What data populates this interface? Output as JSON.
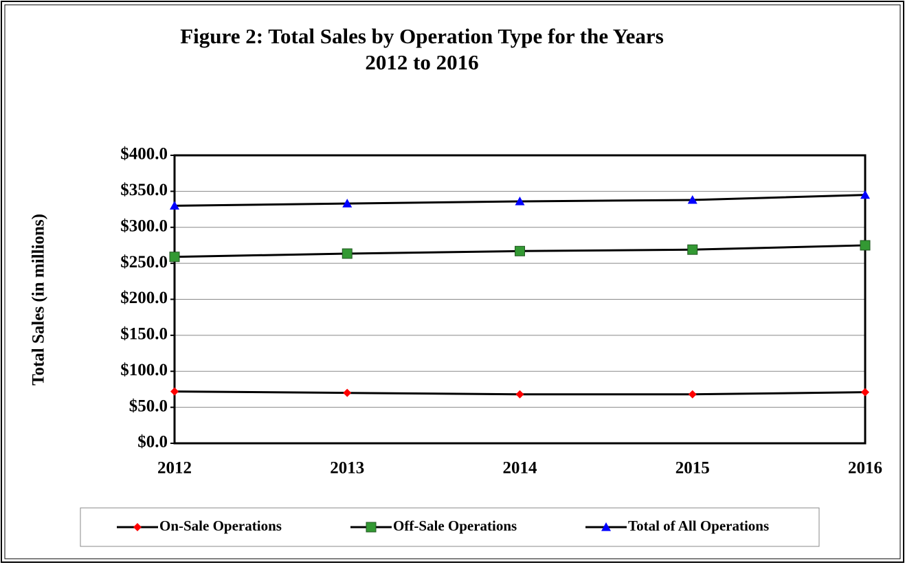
{
  "chart_data": {
    "type": "line",
    "title": [
      "Figure 2:  Total Sales by Operation Type for the Years",
      "2012 to 2016"
    ],
    "y_label": "Total Sales (in millions)",
    "categories": [
      "2012",
      "2013",
      "2014",
      "2015",
      "2016"
    ],
    "series": [
      {
        "name": "On-Sale Operations",
        "color": "#ff0000",
        "line_color": "#000000",
        "marker": "diamond",
        "values": [
          72,
          70,
          68,
          68,
          71
        ]
      },
      {
        "name": "Off-Sale Operations",
        "color": "#339933",
        "line_color": "#000000",
        "marker": "square",
        "values": [
          259,
          263.5,
          267,
          269,
          275
        ]
      },
      {
        "name": "Total of All Operations",
        "color": "#0000ff",
        "line_color": "#000000",
        "marker": "triangle",
        "values": [
          330,
          333,
          336,
          338,
          345
        ]
      }
    ],
    "ylim": [
      0,
      400
    ],
    "yticks": [
      {
        "value": 0,
        "label": "$0.0"
      },
      {
        "value": 50,
        "label": "$50.0"
      },
      {
        "value": 100,
        "label": "$100.0"
      },
      {
        "value": 150,
        "label": "$150.0"
      },
      {
        "value": 200,
        "label": "$200.0"
      },
      {
        "value": 250,
        "label": "$250.0"
      },
      {
        "value": 300,
        "label": "$300.0"
      },
      {
        "value": 350,
        "label": "$350.0"
      },
      {
        "value": 400,
        "label": "$400.0"
      }
    ],
    "grid": true,
    "legend": "bottom"
  }
}
